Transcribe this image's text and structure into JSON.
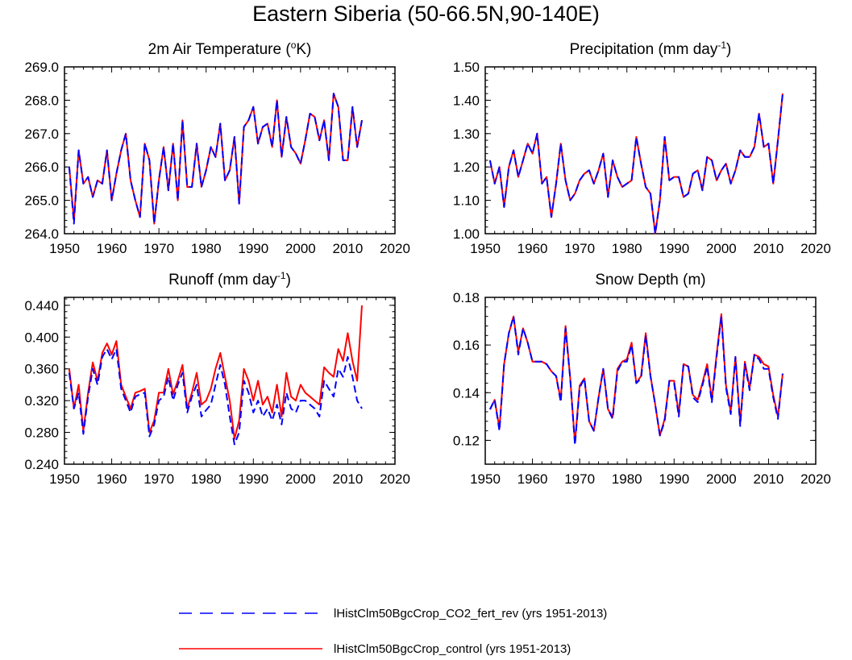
{
  "title": "Eastern Siberia (50-66.5N,90-140E)",
  "chart_data": [
    {
      "type": "line",
      "title": "2m Air Temperature (°K)",
      "title_parts": [
        "2m Air Temperature (",
        "o",
        "K)"
      ],
      "xlim": [
        1950,
        2020
      ],
      "xticks": [
        "1950",
        "1960",
        "1970",
        "1980",
        "1990",
        "2000",
        "2010",
        "2020"
      ],
      "ylim": [
        264.0,
        269.0
      ],
      "yticks": [
        "264.0",
        "265.0",
        "266.0",
        "267.0",
        "268.0",
        "269.0"
      ],
      "x": [
        1951,
        1952,
        1953,
        1954,
        1955,
        1956,
        1957,
        1958,
        1959,
        1960,
        1961,
        1962,
        1963,
        1964,
        1965,
        1966,
        1967,
        1968,
        1969,
        1970,
        1971,
        1972,
        1973,
        1974,
        1975,
        1976,
        1977,
        1978,
        1979,
        1980,
        1981,
        1982,
        1983,
        1984,
        1985,
        1986,
        1987,
        1988,
        1989,
        1990,
        1991,
        1992,
        1993,
        1994,
        1995,
        1996,
        1997,
        1998,
        1999,
        2000,
        2001,
        2002,
        2003,
        2004,
        2005,
        2006,
        2007,
        2008,
        2009,
        2010,
        2011,
        2012,
        2013
      ],
      "series": [
        {
          "name": "lHistClm50BgcCrop_CO2_fert_rev (yrs 1951-2013)",
          "color": "#0000ff",
          "style": "dashed",
          "values": [
            266.0,
            264.3,
            266.5,
            265.5,
            265.7,
            265.1,
            265.6,
            265.5,
            266.5,
            265.0,
            265.8,
            266.5,
            267.0,
            265.6,
            265.0,
            264.5,
            266.7,
            266.2,
            264.3,
            265.6,
            266.6,
            265.3,
            266.7,
            265.0,
            267.4,
            265.4,
            265.4,
            266.7,
            265.4,
            265.9,
            266.6,
            266.3,
            267.3,
            265.6,
            265.9,
            266.9,
            264.9,
            267.2,
            267.4,
            267.8,
            266.7,
            267.2,
            267.3,
            266.6,
            268.0,
            266.3,
            267.5,
            266.6,
            266.4,
            266.1,
            266.8,
            267.6,
            267.5,
            266.8,
            267.4,
            266.2,
            268.2,
            267.8,
            266.2,
            266.2,
            267.8,
            266.6,
            267.4
          ]
        },
        {
          "name": "lHistClm50BgcCrop_control (yrs 1951-2013)",
          "color": "#ff0000",
          "style": "solid",
          "values": [
            266.0,
            264.4,
            266.5,
            265.5,
            265.7,
            265.1,
            265.6,
            265.5,
            266.5,
            265.0,
            265.8,
            266.5,
            267.0,
            265.6,
            265.0,
            264.5,
            266.7,
            266.2,
            264.3,
            265.6,
            266.6,
            265.3,
            266.7,
            265.0,
            267.4,
            265.4,
            265.4,
            266.7,
            265.4,
            265.9,
            266.6,
            266.3,
            267.3,
            265.6,
            265.9,
            266.9,
            264.9,
            267.2,
            267.4,
            267.8,
            266.7,
            267.2,
            267.3,
            266.6,
            268.0,
            266.3,
            267.5,
            266.6,
            266.4,
            266.1,
            266.8,
            267.6,
            267.5,
            266.8,
            267.4,
            266.2,
            268.2,
            267.8,
            266.2,
            266.2,
            267.8,
            266.6,
            267.4
          ]
        }
      ]
    },
    {
      "type": "line",
      "title": "Precipitation (mm day-1)",
      "title_parts": [
        "Precipitation (mm day",
        "-1",
        ")"
      ],
      "xlim": [
        1950,
        2020
      ],
      "xticks": [
        "1950",
        "1960",
        "1970",
        "1980",
        "1990",
        "2000",
        "2010",
        "2020"
      ],
      "ylim": [
        1.0,
        1.5
      ],
      "yticks": [
        "1.00",
        "1.10",
        "1.20",
        "1.30",
        "1.40",
        "1.50"
      ],
      "x": [
        1951,
        1952,
        1953,
        1954,
        1955,
        1956,
        1957,
        1958,
        1959,
        1960,
        1961,
        1962,
        1963,
        1964,
        1965,
        1966,
        1967,
        1968,
        1969,
        1970,
        1971,
        1972,
        1973,
        1974,
        1975,
        1976,
        1977,
        1978,
        1979,
        1980,
        1981,
        1982,
        1983,
        1984,
        1985,
        1986,
        1987,
        1988,
        1989,
        1990,
        1991,
        1992,
        1993,
        1994,
        1995,
        1996,
        1997,
        1998,
        1999,
        2000,
        2001,
        2002,
        2003,
        2004,
        2005,
        2006,
        2007,
        2008,
        2009,
        2010,
        2011,
        2012,
        2013
      ],
      "series": [
        {
          "name": "lHistClm50BgcCrop_CO2_fert_rev (yrs 1951-2013)",
          "color": "#0000ff",
          "style": "dashed",
          "values": [
            1.22,
            1.15,
            1.2,
            1.08,
            1.2,
            1.25,
            1.17,
            1.22,
            1.27,
            1.24,
            1.3,
            1.15,
            1.17,
            1.05,
            1.15,
            1.27,
            1.16,
            1.1,
            1.12,
            1.16,
            1.18,
            1.19,
            1.15,
            1.19,
            1.24,
            1.11,
            1.22,
            1.17,
            1.14,
            1.15,
            1.16,
            1.29,
            1.21,
            1.14,
            1.12,
            1.0,
            1.1,
            1.29,
            1.16,
            1.17,
            1.17,
            1.11,
            1.12,
            1.18,
            1.19,
            1.13,
            1.23,
            1.22,
            1.16,
            1.19,
            1.21,
            1.15,
            1.19,
            1.25,
            1.23,
            1.23,
            1.26,
            1.36,
            1.26,
            1.27,
            1.15,
            1.28,
            1.42
          ]
        },
        {
          "name": "lHistClm50BgcCrop_control (yrs 1951-2013)",
          "color": "#ff0000",
          "style": "solid",
          "values": [
            1.22,
            1.15,
            1.2,
            1.08,
            1.2,
            1.25,
            1.17,
            1.22,
            1.27,
            1.24,
            1.3,
            1.15,
            1.17,
            1.05,
            1.15,
            1.27,
            1.16,
            1.1,
            1.12,
            1.16,
            1.18,
            1.19,
            1.15,
            1.19,
            1.24,
            1.11,
            1.22,
            1.17,
            1.14,
            1.15,
            1.16,
            1.29,
            1.21,
            1.14,
            1.12,
            1.0,
            1.1,
            1.29,
            1.16,
            1.17,
            1.17,
            1.11,
            1.12,
            1.18,
            1.19,
            1.13,
            1.23,
            1.22,
            1.16,
            1.19,
            1.21,
            1.15,
            1.19,
            1.25,
            1.23,
            1.23,
            1.26,
            1.36,
            1.26,
            1.27,
            1.15,
            1.28,
            1.42
          ]
        }
      ]
    },
    {
      "type": "line",
      "title": "Runoff (mm day-1)",
      "title_parts": [
        "Runoff (mm day",
        "-1",
        ")"
      ],
      "xlim": [
        1950,
        2020
      ],
      "xticks": [
        "1950",
        "1960",
        "1970",
        "1980",
        "1990",
        "2000",
        "2010",
        "2020"
      ],
      "ylim": [
        0.24,
        0.45
      ],
      "yticks": [
        "0.240",
        "0.280",
        "0.320",
        "0.360",
        "0.400",
        "0.440"
      ],
      "yticks_values": [
        0.24,
        0.28,
        0.32,
        0.36,
        0.4,
        0.44
      ],
      "x": [
        1951,
        1952,
        1953,
        1954,
        1955,
        1956,
        1957,
        1958,
        1959,
        1960,
        1961,
        1962,
        1963,
        1964,
        1965,
        1966,
        1967,
        1968,
        1969,
        1970,
        1971,
        1972,
        1973,
        1974,
        1975,
        1976,
        1977,
        1978,
        1979,
        1980,
        1981,
        1982,
        1983,
        1984,
        1985,
        1986,
        1987,
        1988,
        1989,
        1990,
        1991,
        1992,
        1993,
        1994,
        1995,
        1996,
        1997,
        1998,
        1999,
        2000,
        2001,
        2002,
        2003,
        2004,
        2005,
        2006,
        2007,
        2008,
        2009,
        2010,
        2011,
        2012,
        2013
      ],
      "series": [
        {
          "name": "lHistClm50BgcCrop_CO2_fert_rev (yrs 1951-2013)",
          "color": "#0000ff",
          "style": "dashed",
          "values": [
            0.355,
            0.31,
            0.33,
            0.278,
            0.325,
            0.36,
            0.34,
            0.375,
            0.385,
            0.372,
            0.385,
            0.335,
            0.32,
            0.305,
            0.325,
            0.328,
            0.33,
            0.275,
            0.29,
            0.32,
            0.325,
            0.35,
            0.32,
            0.34,
            0.355,
            0.305,
            0.325,
            0.34,
            0.3,
            0.308,
            0.315,
            0.34,
            0.365,
            0.34,
            0.3,
            0.265,
            0.28,
            0.345,
            0.33,
            0.305,
            0.32,
            0.3,
            0.31,
            0.295,
            0.315,
            0.29,
            0.33,
            0.31,
            0.305,
            0.32,
            0.32,
            0.315,
            0.31,
            0.3,
            0.345,
            0.335,
            0.325,
            0.36,
            0.35,
            0.375,
            0.35,
            0.32,
            0.31
          ]
        },
        {
          "name": "lHistClm50BgcCrop_control (yrs 1951-2013)",
          "color": "#ff0000",
          "style": "solid",
          "values": [
            0.36,
            0.31,
            0.34,
            0.282,
            0.33,
            0.368,
            0.345,
            0.38,
            0.392,
            0.378,
            0.395,
            0.34,
            0.325,
            0.31,
            0.33,
            0.332,
            0.335,
            0.28,
            0.295,
            0.33,
            0.33,
            0.36,
            0.328,
            0.345,
            0.365,
            0.31,
            0.33,
            0.355,
            0.315,
            0.32,
            0.335,
            0.36,
            0.38,
            0.35,
            0.32,
            0.272,
            0.295,
            0.36,
            0.345,
            0.32,
            0.345,
            0.315,
            0.325,
            0.305,
            0.34,
            0.3,
            0.355,
            0.325,
            0.32,
            0.34,
            0.33,
            0.325,
            0.32,
            0.315,
            0.362,
            0.355,
            0.35,
            0.385,
            0.37,
            0.405,
            0.37,
            0.345,
            0.44
          ]
        }
      ]
    },
    {
      "type": "line",
      "title": "Snow Depth (m)",
      "title_parts": [
        "Snow Depth (m)",
        "",
        ""
      ],
      "xlim": [
        1950,
        2020
      ],
      "xticks": [
        "1950",
        "1960",
        "1970",
        "1980",
        "1990",
        "2000",
        "2010",
        "2020"
      ],
      "ylim": [
        0.11,
        0.18
      ],
      "yticks": [
        "0.12",
        "0.14",
        "0.16",
        "0.18"
      ],
      "yticks_values": [
        0.12,
        0.14,
        0.16,
        0.18
      ],
      "x": [
        1951,
        1952,
        1953,
        1954,
        1955,
        1956,
        1957,
        1958,
        1959,
        1960,
        1961,
        1962,
        1963,
        1964,
        1965,
        1966,
        1967,
        1968,
        1969,
        1970,
        1971,
        1972,
        1973,
        1974,
        1975,
        1976,
        1977,
        1978,
        1979,
        1980,
        1981,
        1982,
        1983,
        1984,
        1985,
        1986,
        1987,
        1988,
        1989,
        1990,
        1991,
        1992,
        1993,
        1994,
        1995,
        1996,
        1997,
        1998,
        1999,
        2000,
        2001,
        2002,
        2003,
        2004,
        2005,
        2006,
        2007,
        2008,
        2009,
        2010,
        2011,
        2012,
        2013
      ],
      "series": [
        {
          "name": "lHistClm50BgcCrop_CO2_fert_rev (yrs 1951-2013)",
          "color": "#0000ff",
          "style": "dashed",
          "values": [
            0.133,
            0.137,
            0.124,
            0.152,
            0.165,
            0.172,
            0.156,
            0.167,
            0.161,
            0.153,
            0.153,
            0.153,
            0.152,
            0.149,
            0.147,
            0.136,
            0.167,
            0.146,
            0.118,
            0.142,
            0.146,
            0.128,
            0.124,
            0.138,
            0.15,
            0.133,
            0.129,
            0.149,
            0.153,
            0.153,
            0.16,
            0.144,
            0.146,
            0.164,
            0.147,
            0.135,
            0.122,
            0.128,
            0.145,
            0.144,
            0.13,
            0.152,
            0.151,
            0.138,
            0.136,
            0.143,
            0.151,
            0.136,
            0.155,
            0.172,
            0.142,
            0.131,
            0.155,
            0.126,
            0.152,
            0.141,
            0.156,
            0.154,
            0.15,
            0.15,
            0.138,
            0.129,
            0.148
          ]
        },
        {
          "name": "lHistClm50BgcCrop_control (yrs 1951-2013)",
          "color": "#ff0000",
          "style": "solid",
          "values": [
            0.133,
            0.137,
            0.125,
            0.152,
            0.165,
            0.172,
            0.157,
            0.167,
            0.161,
            0.153,
            0.153,
            0.153,
            0.152,
            0.149,
            0.147,
            0.137,
            0.168,
            0.146,
            0.119,
            0.143,
            0.146,
            0.128,
            0.124,
            0.138,
            0.15,
            0.133,
            0.13,
            0.15,
            0.153,
            0.154,
            0.161,
            0.144,
            0.147,
            0.165,
            0.147,
            0.135,
            0.122,
            0.129,
            0.145,
            0.145,
            0.131,
            0.152,
            0.151,
            0.139,
            0.137,
            0.144,
            0.152,
            0.137,
            0.156,
            0.173,
            0.143,
            0.132,
            0.155,
            0.127,
            0.153,
            0.142,
            0.156,
            0.155,
            0.152,
            0.151,
            0.139,
            0.13,
            0.148
          ]
        }
      ]
    }
  ],
  "legend": [
    {
      "label": "lHistClm50BgcCrop_CO2_fert_rev (yrs 1951-2013)",
      "color": "#0000ff",
      "style": "dashed"
    },
    {
      "label": "lHistClm50BgcCrop_control (yrs 1951-2013)",
      "color": "#ff0000",
      "style": "solid"
    }
  ]
}
